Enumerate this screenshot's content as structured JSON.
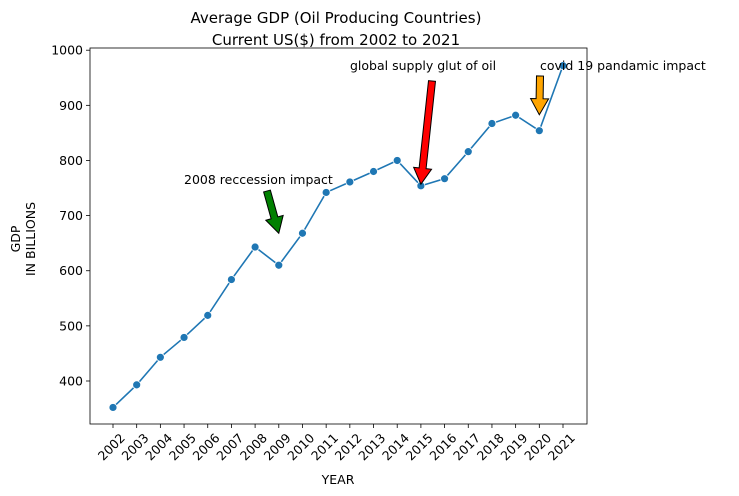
{
  "chart_data": {
    "type": "line",
    "title_line1": "Average GDP (Oil Producing Countries)",
    "title_line2": "Current US($) from 2002 to 2021",
    "xlabel": "YEAR",
    "ylabel_line1": "GDP",
    "ylabel_line2": "IN BILLIONS",
    "x": [
      "2002",
      "2003",
      "2004",
      "2005",
      "2006",
      "2007",
      "2008",
      "2009",
      "2010",
      "2011",
      "2012",
      "2013",
      "2014",
      "2015",
      "2016",
      "2017",
      "2018",
      "2019",
      "2020",
      "2021"
    ],
    "series": [
      {
        "values": [
          352,
          393,
          443,
          479,
          519,
          584,
          643,
          610,
          668,
          742,
          761,
          780,
          800,
          754,
          767,
          816,
          867,
          882,
          854,
          972
        ],
        "color": "#1f77b4"
      }
    ],
    "ylim": [
      322,
      1004
    ],
    "yticks": [
      400,
      500,
      600,
      700,
      800,
      900,
      1000
    ],
    "grid": false,
    "annotations": [
      {
        "text": "2008 reccession impact",
        "year": "2009",
        "value": 668,
        "arrow_color": "#008000"
      },
      {
        "text": "global supply glut of oil",
        "year": "2015",
        "value": 757,
        "arrow_color": "#ff0000"
      },
      {
        "text": "covid 19 pandamic impact",
        "year": "2020",
        "value": 883,
        "arrow_color": "#ffa500"
      }
    ]
  }
}
